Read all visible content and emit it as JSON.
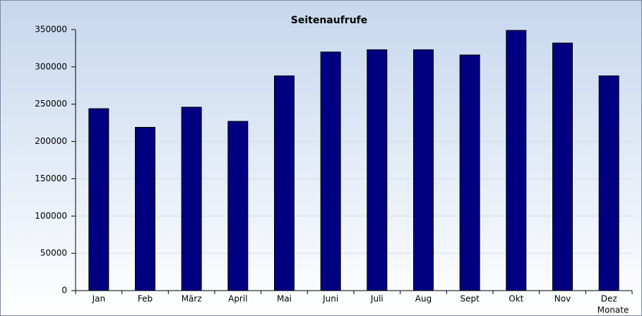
{
  "chart_data": {
    "type": "bar",
    "title": "Seitenaufrufe",
    "x_label": "Monate",
    "categories": [
      "Jan",
      "Feb",
      "März",
      "April",
      "Mai",
      "Juni",
      "Juli",
      "Aug",
      "Sept",
      "Okt",
      "Nov",
      "Dez"
    ],
    "values": [
      244000,
      219000,
      246000,
      227000,
      288000,
      320000,
      323000,
      323000,
      316000,
      349000,
      332000,
      288000
    ],
    "color": "#000080",
    "ylim": [
      0,
      350000
    ],
    "yticks": [
      0,
      50000,
      100000,
      150000,
      200000,
      250000,
      300000,
      350000
    ],
    "grid": true
  }
}
